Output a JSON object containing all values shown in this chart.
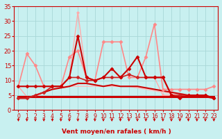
{
  "bg_color": "#c8f0f0",
  "grid_color": "#a8d8d8",
  "title": "Vent moyen/en rafales ( km/h )",
  "xlim": [
    -0.5,
    23.5
  ],
  "ylim": [
    0,
    35
  ],
  "yticks": [
    0,
    5,
    10,
    15,
    20,
    25,
    30,
    35
  ],
  "xticks": [
    0,
    1,
    2,
    3,
    4,
    5,
    6,
    7,
    8,
    9,
    10,
    11,
    12,
    13,
    14,
    15,
    16,
    17,
    18,
    19,
    20,
    21,
    22,
    23
  ],
  "series": [
    {
      "x": [
        0,
        1,
        2,
        3,
        4,
        5,
        6,
        7,
        8,
        9,
        10,
        11,
        12,
        13,
        14,
        15,
        16,
        17,
        18,
        19,
        20,
        21,
        22,
        23
      ],
      "y": [
        4.5,
        4.5,
        4.5,
        4.5,
        4.5,
        4.5,
        4.5,
        4.5,
        4.5,
        4.5,
        4.5,
        4.5,
        4.5,
        4.5,
        4.5,
        4.5,
        4.5,
        4.5,
        4.5,
        4.5,
        4.5,
        4.5,
        4.5,
        4.5
      ],
      "color": "#cc0000",
      "lw": 2.2,
      "marker": null,
      "ls": "-",
      "zorder": 4
    },
    {
      "x": [
        0,
        1,
        2,
        3,
        4,
        5,
        6,
        7,
        8,
        9,
        10,
        11,
        12,
        13,
        14,
        15,
        16,
        17,
        18,
        19,
        20,
        21,
        22,
        23
      ],
      "y": [
        4,
        4,
        5,
        6,
        7,
        7.5,
        8,
        9,
        9,
        8.5,
        8,
        8.5,
        8,
        8,
        8,
        7.5,
        7,
        6.5,
        6,
        5.5,
        5,
        5,
        4.5,
        4
      ],
      "color": "#cc0000",
      "lw": 1.5,
      "marker": null,
      "ls": "-",
      "zorder": 3
    },
    {
      "x": [
        0,
        1,
        2,
        3,
        4,
        5,
        6,
        7,
        8,
        9,
        10,
        11,
        12,
        13,
        14,
        15,
        16,
        17,
        18,
        19,
        20,
        21,
        22,
        23
      ],
      "y": [
        4,
        4,
        5,
        6,
        8,
        8,
        11,
        11,
        10,
        10,
        11,
        11,
        11,
        12,
        11,
        11,
        11,
        11,
        5,
        5,
        5,
        5,
        5,
        4
      ],
      "color": "#cc2222",
      "lw": 1.2,
      "marker": "D",
      "ms": 2.5,
      "ls": "-",
      "zorder": 5
    },
    {
      "x": [
        0,
        1,
        2,
        3,
        4,
        5,
        6,
        7,
        8,
        9,
        10,
        11,
        12,
        13,
        14,
        15,
        16,
        17,
        18,
        19,
        20,
        21,
        22,
        23
      ],
      "y": [
        8,
        8,
        8,
        8,
        8,
        8,
        11,
        25,
        11,
        10,
        11,
        14,
        11,
        14,
        18,
        11,
        11,
        11,
        5,
        4,
        5,
        5,
        5,
        4
      ],
      "color": "#cc0000",
      "lw": 1.5,
      "marker": "D",
      "ms": 2.5,
      "ls": "-",
      "zorder": 5
    },
    {
      "x": [
        0,
        1,
        2,
        3,
        4,
        5,
        6,
        7,
        8,
        9,
        10,
        11,
        12,
        13,
        14,
        15,
        16,
        17,
        18,
        19,
        20,
        21,
        22,
        23
      ],
      "y": [
        8,
        19,
        15,
        8,
        8,
        8,
        18,
        20,
        11,
        10,
        23,
        23,
        23,
        11,
        11,
        18,
        29,
        7,
        7,
        7,
        7,
        7,
        7,
        8
      ],
      "color": "#ff8888",
      "lw": 1.2,
      "marker": "D",
      "ms": 2.5,
      "ls": "-",
      "zorder": 3
    },
    {
      "x": [
        0,
        1,
        2,
        3,
        4,
        5,
        6,
        7,
        8,
        9,
        10,
        11,
        12,
        13,
        14,
        15,
        16,
        17,
        18,
        19,
        20,
        21,
        22,
        23
      ],
      "y": [
        8,
        4.5,
        4.5,
        6,
        8,
        8,
        11,
        33,
        11,
        10,
        11,
        11,
        11,
        12,
        11,
        11,
        11,
        5,
        5,
        5,
        5,
        5,
        5,
        4
      ],
      "color": "#ffaaaa",
      "lw": 1.0,
      "marker": "D",
      "ms": 2,
      "ls": "-",
      "zorder": 2
    },
    {
      "x": [
        0,
        1,
        2,
        3,
        4,
        5,
        6,
        7,
        8,
        9,
        10,
        11,
        12,
        13,
        14,
        15,
        16,
        17,
        18,
        19,
        20,
        21,
        22,
        23
      ],
      "y": [
        4,
        4,
        4.5,
        6,
        8,
        8,
        8,
        8,
        8,
        8,
        8,
        8,
        8,
        8,
        7.5,
        7,
        6.5,
        6,
        5.5,
        5,
        5,
        5,
        5,
        4
      ],
      "color": "#ffbbbb",
      "lw": 1.0,
      "marker": null,
      "ls": "-",
      "zorder": 2
    }
  ],
  "arrow_color": "#cc0000",
  "tick_color": "#cc0000",
  "spine_color": "#cc0000"
}
